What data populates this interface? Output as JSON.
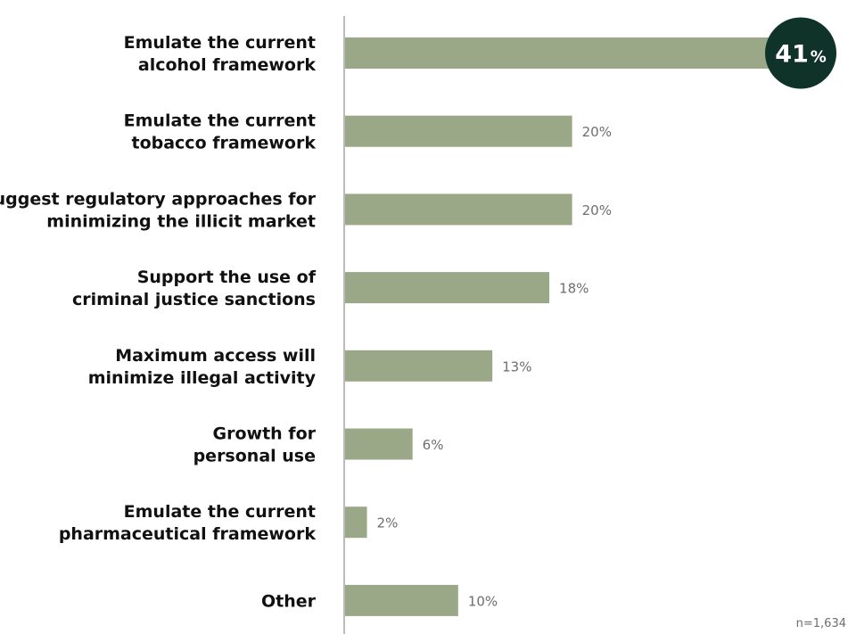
{
  "chart_data": {
    "type": "bar",
    "orientation": "horizontal",
    "categories": [
      [
        "Emulate the current",
        "alcohol framework"
      ],
      [
        "Emulate the current",
        "tobacco framework"
      ],
      [
        "Suggest regulatory approaches for",
        "minimizing the illicit market"
      ],
      [
        "Support the use of",
        "criminal justice sanctions"
      ],
      [
        "Maximum access will",
        "minimize illegal activity"
      ],
      [
        "Growth for",
        "personal use"
      ],
      [
        "Emulate the current",
        "pharmaceutical framework"
      ],
      [
        "Other"
      ]
    ],
    "values": [
      41,
      20,
      20,
      18,
      13,
      6,
      2,
      10
    ],
    "value_labels": [
      "41",
      "20%",
      "20%",
      "18%",
      "13%",
      "6%",
      "2%",
      "10%"
    ],
    "highlight": {
      "index": 0,
      "number": "41",
      "suffix": "%"
    },
    "unit": "%",
    "xlim": [
      0,
      41
    ],
    "grid": false,
    "legend": "none",
    "colors": {
      "bar": "#9aa887",
      "highlight_circle": "#0f3328",
      "axis": "#777777",
      "text": "#111111",
      "value_text": "#6e6e6e"
    }
  },
  "note": "n=1,634"
}
